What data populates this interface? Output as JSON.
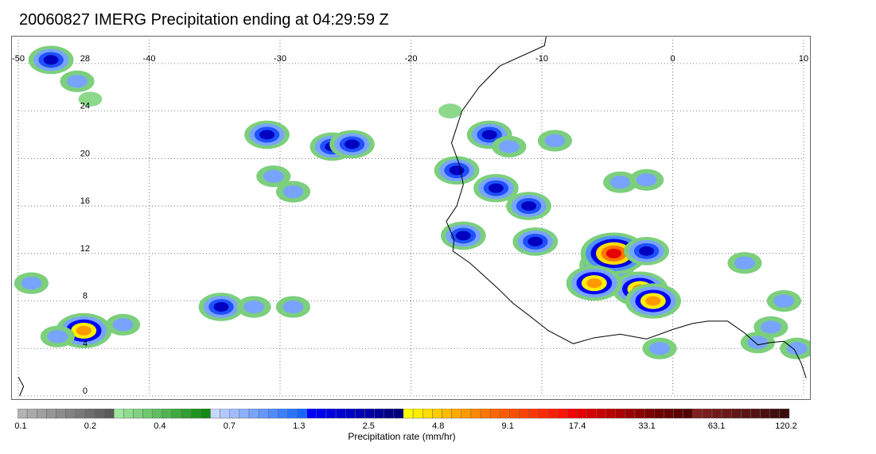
{
  "title": "20060827 IMERG Precipitation ending at 04:29:59 Z",
  "map": {
    "longitude_labels": [
      "-50",
      "-40",
      "-30",
      "-20",
      "-10",
      "0",
      "10"
    ],
    "longitudes": [
      -50,
      -40,
      -30,
      -20,
      -10,
      0,
      10
    ],
    "latitude_labels": [
      "28",
      "24",
      "20",
      "16",
      "12",
      "8",
      "4",
      "0"
    ],
    "latitudes": [
      28,
      24,
      20,
      16,
      12,
      8,
      4,
      0
    ],
    "lon_range": [
      -50,
      10
    ],
    "lat_range": [
      0,
      30
    ],
    "grid": "dotted",
    "coastline_color": "#000000"
  },
  "precip_cells": [
    {
      "lon": -47.5,
      "lat": 28.3,
      "level": 3
    },
    {
      "lon": -45.5,
      "lat": 26.5,
      "level": 2
    },
    {
      "lon": -44.5,
      "lat": 25.0,
      "level": 1
    },
    {
      "lon": -31.0,
      "lat": 22.0,
      "level": 3
    },
    {
      "lon": -26.0,
      "lat": 21.0,
      "level": 3
    },
    {
      "lon": -24.5,
      "lat": 21.2,
      "level": 3
    },
    {
      "lon": -30.5,
      "lat": 18.5,
      "level": 2
    },
    {
      "lon": -29.0,
      "lat": 17.2,
      "level": 2
    },
    {
      "lon": -17.0,
      "lat": 24.0,
      "level": 1
    },
    {
      "lon": -14.0,
      "lat": 22.0,
      "level": 3
    },
    {
      "lon": -12.5,
      "lat": 21.0,
      "level": 2
    },
    {
      "lon": -16.5,
      "lat": 19.0,
      "level": 3
    },
    {
      "lon": -13.5,
      "lat": 17.5,
      "level": 3
    },
    {
      "lon": -11.0,
      "lat": 16.0,
      "level": 3
    },
    {
      "lon": -16.0,
      "lat": 13.5,
      "level": 3
    },
    {
      "lon": -10.5,
      "lat": 13.0,
      "level": 3
    },
    {
      "lon": -5.0,
      "lat": 11.0,
      "level": 4
    },
    {
      "lon": -4.5,
      "lat": 12.0,
      "level": 5
    },
    {
      "lon": -2.5,
      "lat": 9.0,
      "level": 4
    },
    {
      "lon": -1.5,
      "lat": 8.0,
      "level": 4
    },
    {
      "lon": -6.0,
      "lat": 9.5,
      "level": 4
    },
    {
      "lon": -2.0,
      "lat": 12.2,
      "level": 3
    },
    {
      "lon": 5.5,
      "lat": 11.2,
      "level": 2
    },
    {
      "lon": 6.5,
      "lat": 4.5,
      "level": 2
    },
    {
      "lon": 9.5,
      "lat": 4.0,
      "level": 2
    },
    {
      "lon": -1.0,
      "lat": 4.0,
      "level": 2
    },
    {
      "lon": -34.5,
      "lat": 7.5,
      "level": 3
    },
    {
      "lon": -32.0,
      "lat": 7.5,
      "level": 2
    },
    {
      "lon": -29.0,
      "lat": 7.5,
      "level": 2
    },
    {
      "lon": -45.0,
      "lat": 5.5,
      "level": 4
    },
    {
      "lon": -47.0,
      "lat": 5.0,
      "level": 2
    },
    {
      "lon": -42.0,
      "lat": 6.0,
      "level": 2
    },
    {
      "lon": -49.0,
      "lat": 9.5,
      "level": 2
    },
    {
      "lon": -4.0,
      "lat": 18.0,
      "level": 2
    },
    {
      "lon": -2.0,
      "lat": 18.2,
      "level": 2
    },
    {
      "lon": -9.0,
      "lat": 21.5,
      "level": 2
    },
    {
      "lon": 8.5,
      "lat": 8.0,
      "level": 2
    },
    {
      "lon": 7.5,
      "lat": 5.8,
      "level": 2
    }
  ],
  "colorbar": {
    "title": "Precipitation rate (mm/hr)",
    "labels": [
      "0.1",
      "0.2",
      "0.4",
      "0.7",
      "1.3",
      "2.5",
      "4.8",
      "9.1",
      "17.4",
      "33.1",
      "63.1",
      "120.2"
    ],
    "colors": [
      "#b4b4b4",
      "#aaaaaa",
      "#a0a0a0",
      "#969696",
      "#8c8c8c",
      "#828282",
      "#787878",
      "#6e6e6e",
      "#646464",
      "#5a5a5a",
      "#a0e6a0",
      "#90dc90",
      "#80d280",
      "#70c870",
      "#60be60",
      "#50b450",
      "#40aa40",
      "#309e30",
      "#209420",
      "#108a10",
      "#c8d7ff",
      "#b4c8ff",
      "#a0bcff",
      "#8cb0ff",
      "#78a4ff",
      "#6498ff",
      "#508cff",
      "#3c80ff",
      "#2874ff",
      "#1468ff",
      "#0000ff",
      "#0000f0",
      "#0000e1",
      "#0000d2",
      "#0000c3",
      "#0000b4",
      "#0000a5",
      "#000096",
      "#000087",
      "#000078",
      "#ffff00",
      "#ffee00",
      "#ffdd00",
      "#ffcc00",
      "#ffbb00",
      "#ffaa00",
      "#ff9900",
      "#ff8800",
      "#ff7700",
      "#ff6600",
      "#ff5a00",
      "#ff4e00",
      "#ff4200",
      "#ff3600",
      "#ff2a00",
      "#ff1e00",
      "#ff1200",
      "#f60000",
      "#e60000",
      "#d60000",
      "#c80000",
      "#b90000",
      "#aa0000",
      "#9b0000",
      "#8c0000",
      "#7d0000",
      "#6e0000",
      "#640000",
      "#5a0000",
      "#500000",
      "#821e1e",
      "#7a1c1c",
      "#721a1a",
      "#6a1818",
      "#621616",
      "#5a1414",
      "#521212",
      "#4a1010",
      "#420e0e",
      "#3a0c0c"
    ]
  }
}
